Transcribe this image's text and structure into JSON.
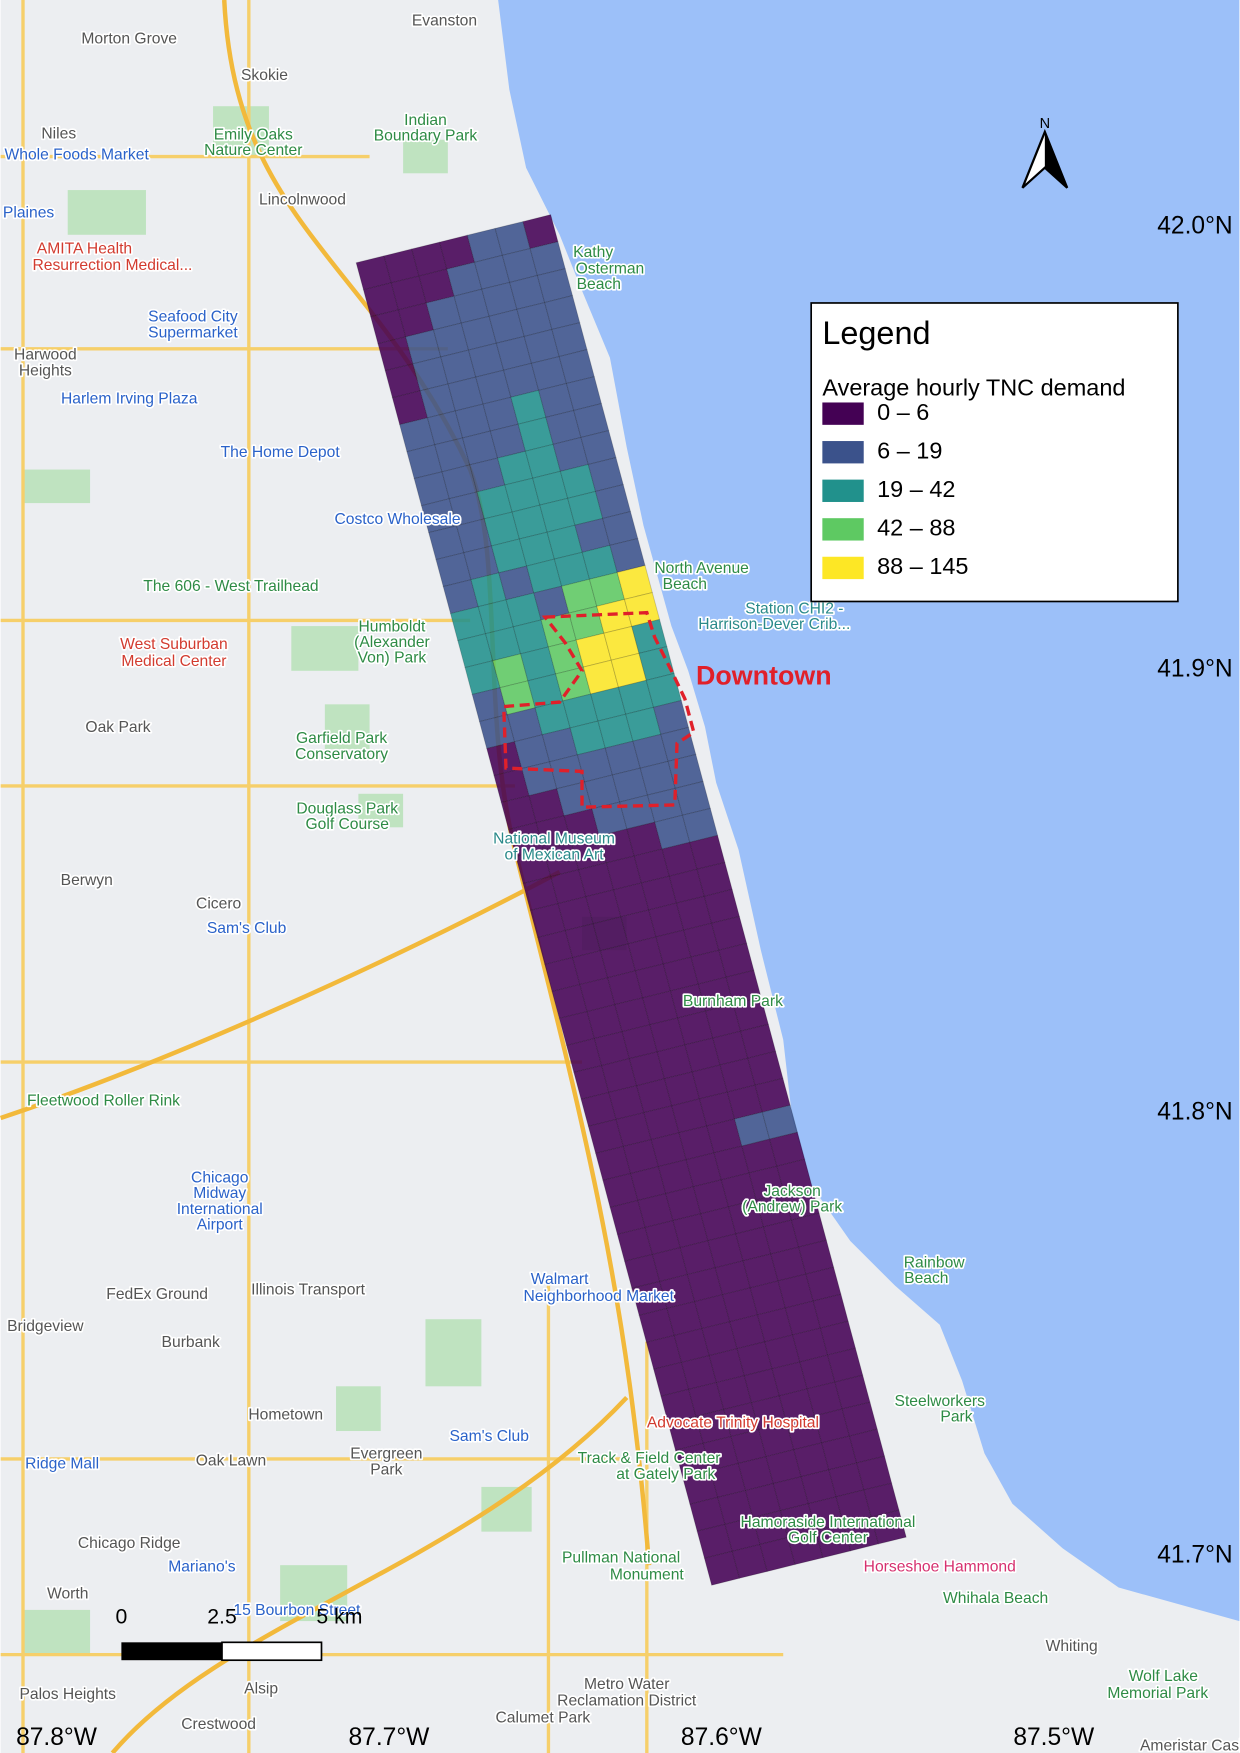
{
  "map": {
    "legend": {
      "title": "Legend",
      "subtitle": "Average hourly TNC demand",
      "classes": [
        {
          "label": "0 – 6",
          "color": "#440154"
        },
        {
          "label": "6 – 19",
          "color": "#3b528b"
        },
        {
          "label": "19 – 42",
          "color": "#21918c"
        },
        {
          "label": "42 – 88",
          "color": "#5ec962"
        },
        {
          "label": "88 – 145",
          "color": "#fde725"
        }
      ]
    },
    "demand_grid": [
      [
        0,
        0,
        0,
        0,
        1,
        1,
        0
      ],
      [
        0,
        0,
        0,
        1,
        1,
        1,
        1
      ],
      [
        0,
        0,
        1,
        1,
        1,
        1,
        1
      ],
      [
        0,
        1,
        1,
        1,
        1,
        1,
        1
      ],
      [
        0,
        1,
        1,
        1,
        1,
        1,
        1
      ],
      [
        0,
        1,
        1,
        1,
        1,
        1,
        1
      ],
      [
        1,
        1,
        1,
        1,
        2,
        1,
        1
      ],
      [
        1,
        1,
        1,
        1,
        2,
        1,
        1
      ],
      [
        1,
        1,
        1,
        2,
        2,
        1,
        1
      ],
      [
        1,
        1,
        2,
        2,
        2,
        2,
        1
      ],
      [
        1,
        1,
        2,
        2,
        2,
        2,
        1
      ],
      [
        1,
        1,
        2,
        2,
        2,
        1,
        1
      ],
      [
        1,
        2,
        1,
        2,
        2,
        2,
        1
      ],
      [
        2,
        2,
        2,
        1,
        3,
        3,
        4
      ],
      [
        2,
        2,
        2,
        3,
        3,
        4,
        4
      ],
      [
        2,
        3,
        2,
        3,
        4,
        4,
        2
      ],
      [
        1,
        3,
        2,
        3,
        4,
        4,
        2
      ],
      [
        1,
        1,
        2,
        2,
        2,
        2,
        2
      ],
      [
        0,
        1,
        1,
        2,
        2,
        2,
        1
      ],
      [
        0,
        1,
        1,
        1,
        1,
        1,
        1
      ],
      [
        0,
        0,
        1,
        1,
        1,
        1,
        1
      ],
      [
        0,
        0,
        0,
        1,
        1,
        1,
        1
      ],
      [
        0,
        0,
        0,
        0,
        0,
        1,
        1
      ],
      [
        0,
        0,
        0,
        0,
        0,
        0,
        0
      ],
      [
        0,
        0,
        0,
        0,
        0,
        0,
        0
      ],
      [
        0,
        0,
        0,
        0,
        0,
        0,
        0
      ],
      [
        0,
        0,
        0,
        0,
        0,
        0,
        0
      ],
      [
        0,
        0,
        0,
        0,
        0,
        0,
        0
      ],
      [
        0,
        0,
        0,
        0,
        0,
        0,
        0
      ],
      [
        0,
        0,
        0,
        0,
        0,
        0,
        0
      ],
      [
        0,
        0,
        0,
        0,
        0,
        0,
        0
      ],
      [
        0,
        0,
        0,
        0,
        0,
        0,
        0
      ],
      [
        0,
        0,
        0,
        0,
        0,
        0,
        0
      ],
      [
        0,
        0,
        0,
        0,
        0,
        1,
        1
      ],
      [
        0,
        0,
        0,
        0,
        0,
        0,
        0
      ],
      [
        0,
        0,
        0,
        0,
        0,
        0,
        0
      ],
      [
        0,
        0,
        0,
        0,
        0,
        0,
        0
      ],
      [
        0,
        0,
        0,
        0,
        0,
        0,
        0
      ],
      [
        0,
        0,
        0,
        0,
        0,
        0,
        0
      ],
      [
        0,
        0,
        0,
        0,
        0,
        0,
        0
      ],
      [
        0,
        0,
        0,
        0,
        0,
        0,
        0
      ],
      [
        0,
        0,
        0,
        0,
        0,
        0,
        0
      ],
      [
        0,
        0,
        0,
        0,
        0,
        0,
        0
      ],
      [
        0,
        0,
        0,
        0,
        0,
        0,
        0
      ],
      [
        0,
        0,
        0,
        0,
        0,
        0,
        0
      ],
      [
        0,
        0,
        0,
        0,
        0,
        0,
        0
      ],
      [
        0,
        0,
        0,
        0,
        0,
        0,
        0
      ],
      [
        0,
        0,
        0,
        0,
        0,
        0,
        0
      ],
      [
        0,
        0,
        0,
        0,
        0,
        0,
        0
      ]
    ],
    "downtown_label": "Downtown",
    "latitude_labels": [
      {
        "value": 42.0,
        "label": "42.0°N"
      },
      {
        "value": 41.9,
        "label": "41.9°N"
      },
      {
        "value": 41.8,
        "label": "41.8°N"
      },
      {
        "value": 41.7,
        "label": "41.7°N"
      }
    ],
    "longitude_labels": [
      {
        "value": -87.8,
        "label": "87.8°W"
      },
      {
        "value": -87.7,
        "label": "87.7°W"
      },
      {
        "value": -87.6,
        "label": "87.6°W"
      },
      {
        "value": -87.5,
        "label": "87.5°W"
      }
    ],
    "scale_bar": {
      "labels": [
        "0",
        "2.5",
        "5 km"
      ]
    },
    "north_label": "N",
    "places": [
      "Evanston",
      "Morton Grove",
      "Skokie",
      "Niles",
      "Emily Oaks",
      "Nature Center",
      "Indian",
      "Boundary Park",
      "Whole Foods Market",
      "Lincolnwood",
      "Plaines",
      "AMITA Health",
      "Resurrection Medical...",
      "Kathy",
      "Osterman",
      "Beach",
      "Seafood City",
      "Supermarket",
      "Harwood",
      "Heights",
      "Harlem Irving Plaza",
      "The Home Depot",
      "Costco Wholesale",
      "The 606 - West Trailhead",
      "North Avenue",
      "Beach",
      "Station CHI2 -",
      "Harrison-Dever Crib...",
      "Humboldt",
      "(Alexander",
      "Von) Park",
      "West Suburban",
      "Medical Center",
      "Oak Park",
      "Garfield Park",
      "Conservatory",
      "Douglass Park",
      "Golf Course",
      "National Museum",
      "of Mexican Art",
      "Berwyn",
      "Cicero",
      "Sam's Club",
      "Burnham Park",
      "Fleetwood Roller Rink",
      "Chicago",
      "Midway",
      "International",
      "Airport",
      "Jackson",
      "(Andrew) Park",
      "Rainbow",
      "Beach",
      "FedEx Ground",
      "Illinois Transport",
      "Walmart",
      "Neighborhood Market",
      "Bridgeview",
      "Burbank",
      "Hometown",
      "Steelworkers",
      "Park",
      "Advocate Trinity Hospital",
      "Sam's Club",
      "Oak Lawn",
      "Evergreen",
      "Park",
      "Track & Field Center",
      "at Gately Park",
      "Ridge Mall",
      "Chicago Ridge",
      "Hamoraside International",
      "Golf Center",
      "Mariano's",
      "Pullman National",
      "Monument",
      "Horseshoe Hammond",
      "Whihala Beach",
      "Worth",
      "15 Bourbon Street",
      "Whiting",
      "Wolf Lake",
      "Memorial Park",
      "Metro Water",
      "Reclamation District",
      "Palos Heights",
      "Alsip",
      "Crestwood",
      "Calumet Park",
      "Ameristar Casi"
    ]
  }
}
